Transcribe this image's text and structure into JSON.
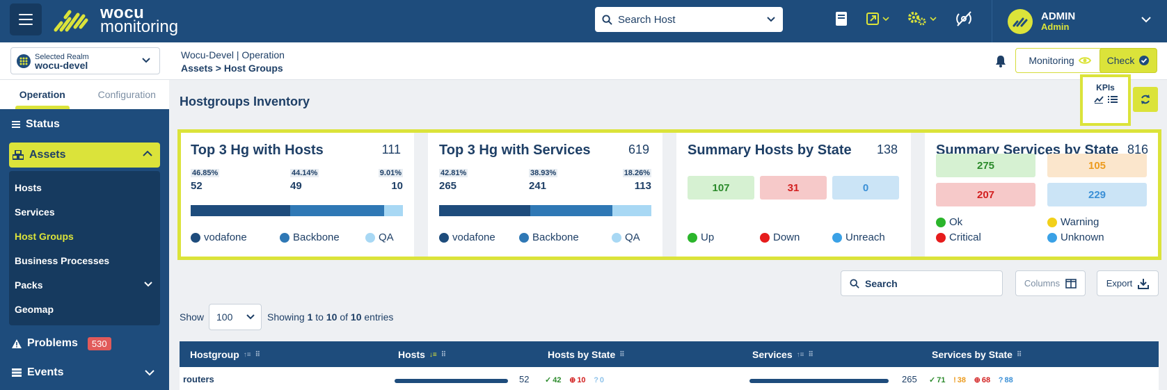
{
  "brand": {
    "line1": "wocu",
    "line2": "monitoring"
  },
  "header": {
    "search_label": "Search Host",
    "user_name": "ADMIN",
    "user_role": "Admin"
  },
  "realm": {
    "caption": "Selected Realm",
    "name": "wocu-devel"
  },
  "breadcrumb": {
    "line1_a": "Wocu-Devel",
    "line1_sep": "|",
    "line1_b": "Operation",
    "line2": "Assets > Host Groups"
  },
  "actions": {
    "monitoring": "Monitoring",
    "check": "Check"
  },
  "sidebar": {
    "tabs": [
      "Operation",
      "Configuration"
    ],
    "status": "Status",
    "assets": "Assets",
    "sub": [
      "Hosts",
      "Services",
      "Host Groups",
      "Business Processes",
      "Packs",
      "Geomap"
    ],
    "problems": "Problems",
    "problems_count": "530",
    "events": "Events"
  },
  "page": {
    "title": "Hostgroups Inventory",
    "kpis": "KPIs"
  },
  "cards": {
    "hosts": {
      "title": "Top 3 Hg with Hosts",
      "total": "111",
      "pcts": [
        "46.85%",
        "44.14%",
        "9.01%"
      ],
      "vals": [
        "52",
        "49",
        "10"
      ],
      "share": [
        46.85,
        44.14,
        9.01
      ],
      "legend": [
        "vodafone",
        "Backbone",
        "QA"
      ]
    },
    "services": {
      "title": "Top 3 Hg with Services",
      "total": "619",
      "pcts": [
        "42.81%",
        "38.93%",
        "18.26%"
      ],
      "vals": [
        "265",
        "241",
        "113"
      ],
      "share": [
        42.81,
        38.93,
        18.26
      ],
      "legend": [
        "vodafone",
        "Backbone",
        "QA"
      ]
    },
    "hosts_state": {
      "title": "Summary Hosts by State",
      "total": "138",
      "vals": [
        "107",
        "31",
        "0"
      ],
      "legend": [
        "Up",
        "Down",
        "Unreach"
      ]
    },
    "services_state": {
      "title": "Summary Services by State",
      "total": "816",
      "vals": [
        "275",
        "105",
        "207",
        "229"
      ],
      "legend": [
        "Ok",
        "Warning",
        "Critical",
        "Unknown"
      ]
    }
  },
  "colors": {
    "dark": "#1e4c7c",
    "mid": "#2f78b5",
    "light": "#a8d8f4",
    "accent": "#dbe33a"
  },
  "toolbar": {
    "search": "Search",
    "columns": "Columns",
    "export": "Export"
  },
  "pager": {
    "show": "Show",
    "size": "100",
    "entries_pre": "Showing",
    "from": "1",
    "to_word": "to",
    "to": "10",
    "of_word": "of",
    "total": "10",
    "entries_word": "entries"
  },
  "table": {
    "headers": [
      "Hostgroup",
      "Hosts",
      "Hosts by State",
      "Services",
      "Services by State"
    ],
    "rows": [
      {
        "name": "routers",
        "hosts": "52",
        "up": "42",
        "down": "10",
        "unreach": "0",
        "services": "265",
        "ok": "71",
        "warn": "38",
        "crit": "68",
        "unk": "88"
      }
    ]
  }
}
